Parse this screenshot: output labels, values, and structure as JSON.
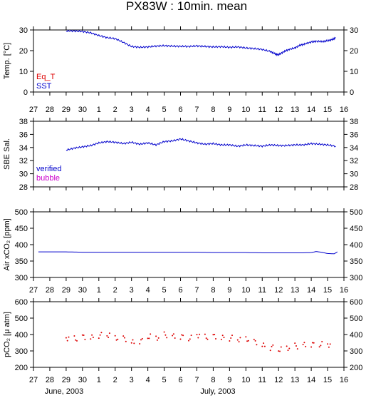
{
  "chart_data": {
    "title": "PX83W : 10min. mean",
    "x_tick_labels": [
      "27",
      "28",
      "29",
      "30",
      "1",
      "2",
      "3",
      "4",
      "5",
      "6",
      "7",
      "8",
      "9",
      "10",
      "11",
      "12",
      "13",
      "14",
      "15",
      "16"
    ],
    "xlim": [
      27,
      16
    ],
    "footer_labels": [
      "June, 2003",
      "July, 2003"
    ],
    "colors": {
      "blue": "#0000cc",
      "red": "#dd0000",
      "magenta": "#cc00cc"
    },
    "panels": [
      {
        "type": "line",
        "ylabel": "Temp. [°C]",
        "ylim": [
          0,
          30
        ],
        "yticks": [
          "0",
          "10",
          "20",
          "30"
        ],
        "legend": [
          "Eq_T",
          "SST"
        ],
        "legend_placement": "bottom-left",
        "series": [
          {
            "name": "SST",
            "color": "#0000cc",
            "x": [
              29.0,
              29.5,
              30.0,
              30.5,
              1.0,
              1.5,
              2.0,
              2.5,
              3.0,
              3.5,
              4.0,
              4.5,
              5.0,
              5.5,
              6.0,
              6.5,
              7.0,
              7.5,
              8.0,
              8.5,
              9.0,
              9.5,
              10.0,
              10.5,
              11.0,
              11.5,
              11.8,
              12.0,
              12.3,
              12.6,
              13.0,
              13.3,
              13.6,
              14.0,
              14.3,
              14.7,
              15.0,
              15.3,
              15.5
            ],
            "y": [
              29.5,
              29.5,
              29.3,
              28.6,
              27.3,
              26.3,
              25.8,
              24.0,
              22.0,
              21.6,
              21.8,
              22.2,
              22.4,
              22.2,
              22.1,
              22.0,
              22.3,
              22.0,
              21.8,
              21.9,
              21.6,
              21.8,
              21.3,
              21.0,
              20.6,
              19.6,
              18.4,
              18.0,
              19.4,
              20.5,
              21.3,
              22.6,
              23.2,
              24.2,
              24.5,
              24.4,
              24.8,
              25.4,
              26.2
            ]
          }
        ]
      },
      {
        "type": "line",
        "ylabel": "SBE Sal.",
        "ylim": [
          28,
          38
        ],
        "yticks": [
          "28",
          "30",
          "32",
          "34",
          "36",
          "38"
        ],
        "legend": [
          "verified",
          "bubble"
        ],
        "legend_placement": "bottom-left",
        "series": [
          {
            "name": "verified",
            "color": "#0000cc",
            "x": [
              29.0,
              29.5,
              30.0,
              30.5,
              1.0,
              1.5,
              2.0,
              2.5,
              3.0,
              3.5,
              4.0,
              4.5,
              5.0,
              5.5,
              6.0,
              6.5,
              7.0,
              7.5,
              8.0,
              8.5,
              9.0,
              9.5,
              10.0,
              10.5,
              11.0,
              11.5,
              12.0,
              12.5,
              13.0,
              13.5,
              14.0,
              14.5,
              15.0,
              15.5
            ],
            "y": [
              33.6,
              33.9,
              34.1,
              34.3,
              34.7,
              34.9,
              34.8,
              34.6,
              34.8,
              34.5,
              34.7,
              34.4,
              34.9,
              35.0,
              35.3,
              35.0,
              34.7,
              34.5,
              34.6,
              34.4,
              34.4,
              34.2,
              34.4,
              34.3,
              34.2,
              34.4,
              34.3,
              34.3,
              34.4,
              34.4,
              34.6,
              34.5,
              34.4,
              34.2
            ]
          }
        ]
      },
      {
        "type": "line",
        "ylabel": "Air xCO₂ [ppm]",
        "ylim": [
          300,
          500
        ],
        "yticks": [
          "300",
          "350",
          "400",
          "450",
          "500"
        ],
        "series": [
          {
            "name": "",
            "color": "#0000cc",
            "x": [
              27.3,
              28.0,
              29.0,
              30.0,
              1.0,
              2.0,
              3.0,
              4.0,
              5.0,
              6.0,
              7.0,
              8.0,
              9.0,
              10.0,
              11.0,
              12.0,
              13.0,
              13.5,
              14.0,
              14.3,
              14.6,
              15.0,
              15.4,
              15.6
            ],
            "y": [
              378,
              378,
              378,
              377,
              377,
              377,
              377,
              377,
              377,
              377,
              377,
              376,
              376,
              376,
              375,
              375,
              375,
              375,
              376,
              379,
              377,
              373,
              372,
              378
            ]
          }
        ]
      },
      {
        "type": "scatter",
        "ylabel": "pCO₂ [μ atm]",
        "ylim": [
          200,
          600
        ],
        "yticks": [
          "200",
          "300",
          "400",
          "500",
          "600"
        ],
        "series": [
          {
            "name": "",
            "color": "#dd0000",
            "x": [
              29.0,
              29.5,
              30.0,
              30.5,
              1.0,
              1.5,
              2.0,
              2.5,
              3.0,
              3.5,
              4.0,
              4.5,
              5.0,
              5.5,
              6.0,
              6.5,
              7.0,
              7.5,
              8.0,
              8.5,
              9.0,
              9.5,
              10.0,
              10.5,
              11.0,
              11.5,
              12.0,
              12.5,
              13.0,
              13.5,
              14.0,
              14.5,
              15.0
            ],
            "y": [
              380,
              375,
              385,
              380,
              395,
              398,
              380,
              375,
              350,
              360,
              388,
              382,
              398,
              388,
              385,
              378,
              398,
              385,
              388,
              378,
              378,
              372,
              372,
              355,
              330,
              320,
              310,
              320,
              330,
              335,
              338,
              340,
              340
            ]
          }
        ]
      }
    ]
  }
}
